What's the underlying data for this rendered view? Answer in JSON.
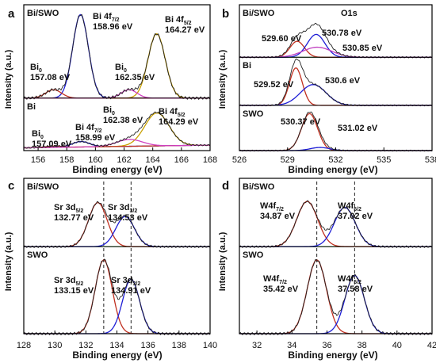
{
  "figure": {
    "panels": [
      {
        "id": "a",
        "panel_letter": "a",
        "ylabel": "Intensity (a.u.)",
        "chart_data": {
          "type": "line",
          "title": "",
          "xlabel": "Binding energy (eV)",
          "ylabel": "Intensity (a.u.)",
          "xlim": [
            155,
            168
          ],
          "xticks": [
            156,
            158,
            160,
            162,
            164,
            166,
            168
          ],
          "xticklabels": [
            "156",
            "158",
            "160",
            "162",
            "164",
            "166",
            "168"
          ],
          "grid": false,
          "subplots": [
            {
              "sample_label": "Bi/SWO",
              "ylim": [
                0,
                1.05
              ],
              "peaks": [
                {
                  "name": "Bi 4f7/2",
                  "color": "#1f1fd6",
                  "center": 158.96,
                  "height": 1.0,
                  "width": 0.55
                },
                {
                  "name": "Bi 4f5/2",
                  "color": "#c8a000",
                  "center": 164.27,
                  "height": 0.77,
                  "width": 0.6
                },
                {
                  "name": "Bi0",
                  "color": "#c03020",
                  "center": 157.08,
                  "height": 0.1,
                  "width": 0.55
                },
                {
                  "name": "Bi0",
                  "color": "#d040c0",
                  "center": 162.35,
                  "height": 0.1,
                  "width": 0.55
                }
              ],
              "baseline": 0.0,
              "envelope_color": "#222222",
              "annotations": [
                {
                  "main": "Bi 4f",
                  "sub": "7/2",
                  "value": "158.96 eV"
                },
                {
                  "main": "Bi 4f",
                  "sub": "5/2",
                  "value": "164.27 eV"
                },
                {
                  "main": "Bi",
                  "sub": "0",
                  "value": "157.08 eV"
                },
                {
                  "main": "Bi",
                  "sub": "0",
                  "value": "162.35 eV"
                }
              ]
            },
            {
              "sample_label": "Bi",
              "ylim": [
                0,
                1.05
              ],
              "peaks": [
                {
                  "name": "Bi 4f7/2",
                  "color": "#1f1fd6",
                  "center": 158.99,
                  "height": 0.12,
                  "width": 0.6
                },
                {
                  "name": "Bi 4f5/2",
                  "color": "#c8a000",
                  "center": 164.29,
                  "height": 0.72,
                  "width": 0.85
                },
                {
                  "name": "Bi0",
                  "color": "#c03020",
                  "center": 157.09,
                  "height": 0.03,
                  "width": 0.55
                },
                {
                  "name": "Bi0",
                  "color": "#d040c0",
                  "center": 162.38,
                  "height": 0.15,
                  "width": 0.9
                }
              ],
              "baseline": 0.06,
              "envelope_color": "#222222",
              "annotations": [
                {
                  "main": "Bi 4f",
                  "sub": "7/2",
                  "value": "158.99 eV"
                },
                {
                  "main": "Bi 4f",
                  "sub": "5/2",
                  "value": "164.29 eV"
                },
                {
                  "main": "Bi",
                  "sub": "0",
                  "value": "157.09 eV"
                },
                {
                  "main": "Bi",
                  "sub": "0",
                  "value": "162.38 eV"
                }
              ]
            }
          ]
        }
      },
      {
        "id": "b",
        "panel_letter": "b",
        "ylabel": "Intensity (a.u.)",
        "chart_data": {
          "type": "line",
          "title": "",
          "xlabel": "Binding energy (eV)",
          "ylabel": "Intensity (a.u.)",
          "xlim": [
            526,
            538
          ],
          "xticks": [
            526,
            529,
            532,
            535,
            538
          ],
          "xticklabels": [
            "526",
            "529",
            "532",
            "535",
            "538"
          ],
          "grid": false,
          "header_annotation": "O1s",
          "subplots": [
            {
              "sample_label": "Bi/SWO",
              "ylim": [
                0,
                1.05
              ],
              "peaks": [
                {
                  "name": "O 529.60",
                  "color": "#c03020",
                  "center": 529.6,
                  "height": 0.35,
                  "width": 0.45
                },
                {
                  "name": "O 530.78",
                  "color": "#1f1fd6",
                  "center": 530.78,
                  "height": 0.5,
                  "width": 0.55
                },
                {
                  "name": "O 530.85",
                  "color": "#c040c0",
                  "center": 530.85,
                  "height": 0.22,
                  "width": 0.9
                }
              ],
              "baseline": 0.0,
              "envelope_color": "#222222",
              "annotations": [
                {
                  "value": "529.60 eV"
                },
                {
                  "value": "530.78 eV"
                },
                {
                  "value": "530.85 eV"
                }
              ]
            },
            {
              "sample_label": "Bi",
              "ylim": [
                0,
                1.05
              ],
              "peaks": [
                {
                  "name": "O 529.52",
                  "color": "#c03020",
                  "center": 529.52,
                  "height": 0.9,
                  "width": 0.4
                },
                {
                  "name": "O 530.6",
                  "color": "#1f1fd6",
                  "center": 530.6,
                  "height": 0.5,
                  "width": 0.8
                }
              ],
              "baseline": 0.0,
              "envelope_color": "#222222",
              "annotations": [
                {
                  "value": "529.52 eV"
                },
                {
                  "value": "530.6 eV"
                }
              ]
            },
            {
              "sample_label": "SWO",
              "ylim": [
                0,
                1.05
              ],
              "peaks": [
                {
                  "name": "O 530.37",
                  "color": "#c03020",
                  "center": 530.37,
                  "height": 0.95,
                  "width": 0.5
                },
                {
                  "name": "O 531.02",
                  "color": "#1f1fd6",
                  "center": 531.02,
                  "height": 0.08,
                  "width": 0.6
                }
              ],
              "baseline": 0.0,
              "envelope_color": "#222222",
              "annotations": [
                {
                  "value": "530.37 eV"
                },
                {
                  "value": "531.02 eV"
                }
              ]
            }
          ]
        }
      },
      {
        "id": "c",
        "panel_letter": "c",
        "ylabel": "Intensity (a.u.)",
        "chart_data": {
          "type": "line",
          "title": "",
          "xlabel": "Binding energy (eV)",
          "ylabel": "Intensity (a.u.)",
          "xlim": [
            128,
            140
          ],
          "xticks": [
            128,
            130,
            132,
            134,
            136,
            138,
            140
          ],
          "xticklabels": [
            "128",
            "130",
            "132",
            "134",
            "136",
            "138",
            "140"
          ],
          "grid": false,
          "reference_lines_x": [
            133.15,
            134.91
          ],
          "subplots": [
            {
              "sample_label": "Bi/SWO",
              "ylim": [
                0,
                1.05
              ],
              "peaks": [
                {
                  "name": "Sr 3d5/2",
                  "color": "#c03020",
                  "center": 132.77,
                  "height": 0.73,
                  "width": 0.6
                },
                {
                  "name": "Sr 3d3/2",
                  "color": "#1f1fd6",
                  "center": 134.53,
                  "height": 0.5,
                  "width": 0.6
                }
              ],
              "baseline": 0.0,
              "envelope_color": "#222222",
              "annotations": [
                {
                  "main": "Sr 3d",
                  "sub": "5/2",
                  "value": "132.77 eV"
                },
                {
                  "main": "Sr 3d",
                  "sub": "3/2",
                  "value": "134.53 eV"
                }
              ]
            },
            {
              "sample_label": "SWO",
              "ylim": [
                0,
                1.05
              ],
              "peaks": [
                {
                  "name": "Sr 3d5/2",
                  "color": "#c03020",
                  "center": 133.15,
                  "height": 0.95,
                  "width": 0.55
                },
                {
                  "name": "Sr 3d3/2",
                  "color": "#1f1fd6",
                  "center": 134.91,
                  "height": 0.7,
                  "width": 0.55
                }
              ],
              "baseline": 0.0,
              "envelope_color": "#222222",
              "annotations": [
                {
                  "main": "Sr 3d",
                  "sub": "5/2",
                  "value": "133.15 eV"
                },
                {
                  "main": "Sr 3d",
                  "sub": "3/2",
                  "value": "134.91 eV"
                }
              ]
            }
          ]
        }
      },
      {
        "id": "d",
        "panel_letter": "d",
        "ylabel": "Intensity (a.u.)",
        "chart_data": {
          "type": "line",
          "title": "",
          "xlabel": "Binding energy (eV)",
          "ylabel": "Intensity (a.u.)",
          "xlim": [
            31,
            42
          ],
          "xticks": [
            32,
            34,
            36,
            38,
            40,
            42
          ],
          "xticklabels": [
            "32",
            "34",
            "36",
            "38",
            "40",
            "42"
          ],
          "grid": false,
          "reference_lines_x": [
            35.42,
            37.58
          ],
          "subplots": [
            {
              "sample_label": "Bi/SWO",
              "ylim": [
                0,
                1.05
              ],
              "peaks": [
                {
                  "name": "W4f7/2",
                  "color": "#c03020",
                  "center": 34.87,
                  "height": 0.75,
                  "width": 0.6
                },
                {
                  "name": "W4f5/2",
                  "color": "#1f1fd6",
                  "center": 37.02,
                  "height": 0.65,
                  "width": 0.6
                }
              ],
              "baseline": 0.0,
              "envelope_color": "#222222",
              "annotations": [
                {
                  "main": "W4f",
                  "sub": "7/2",
                  "value": "34.87 eV"
                },
                {
                  "main": "W4f",
                  "sub": "5/2",
                  "value": "37.02 eV"
                }
              ]
            },
            {
              "sample_label": "SWO",
              "ylim": [
                0,
                1.05
              ],
              "peaks": [
                {
                  "name": "W4f7/2",
                  "color": "#c03020",
                  "center": 35.42,
                  "height": 0.95,
                  "width": 0.55
                },
                {
                  "name": "W4f5/2",
                  "color": "#1f1fd6",
                  "center": 37.58,
                  "height": 0.75,
                  "width": 0.55
                }
              ],
              "baseline": 0.0,
              "envelope_color": "#222222",
              "annotations": [
                {
                  "main": "W4f",
                  "sub": "7/2",
                  "value": "35.42 eV"
                },
                {
                  "main": "W4f",
                  "sub": "5/2",
                  "value": "37.58 eV"
                }
              ]
            }
          ]
        }
      }
    ]
  }
}
